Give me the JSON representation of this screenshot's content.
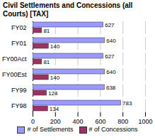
{
  "chart_data": {
    "type": "bar",
    "title": "Civil Settlements and Concessions (all Courts) [TAX]",
    "orientation": "horizontal",
    "categories": [
      "FY02",
      "FY01",
      "FY00Act",
      "FY00Est",
      "FY99",
      "FY98"
    ],
    "series": [
      {
        "name": "# of Settlements",
        "color": "#9999ff",
        "values": [
          627,
          640,
          627,
          640,
          638,
          783
        ]
      },
      {
        "name": "# of Concessions",
        "color": "#993366",
        "values": [
          81,
          140,
          81,
          140,
          124,
          134
        ]
      }
    ],
    "xlim": [
      0,
      1000
    ],
    "xticks": [
      0,
      200,
      400,
      600,
      800,
      1000
    ],
    "grid": true,
    "data_labels": true,
    "legend": "bottom"
  }
}
